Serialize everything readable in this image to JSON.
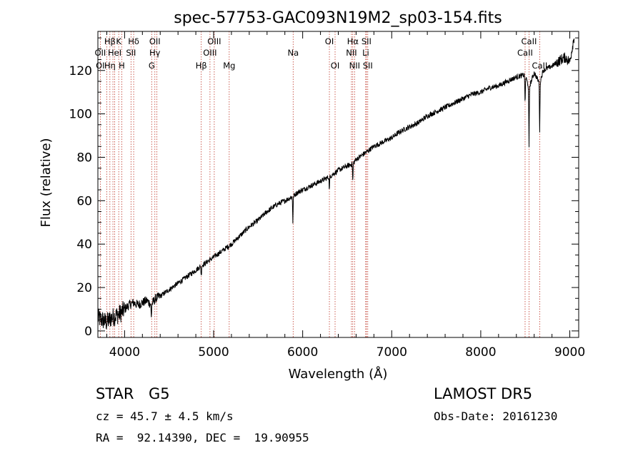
{
  "chart_data": {
    "type": "line",
    "title": "spec-57753-GAC093N19M2_sp03-154.fits",
    "xlabel": "Wavelength (Å)",
    "ylabel": "Flux (relative)",
    "xlim": [
      3700,
      9100
    ],
    "ylim": [
      -3,
      138
    ],
    "xticks": [
      4000,
      5000,
      6000,
      7000,
      8000,
      9000
    ],
    "yticks": [
      0,
      20,
      40,
      60,
      80,
      100,
      120
    ],
    "grid": false,
    "series": [
      {
        "x": [
          3700,
          3750,
          3800,
          3850,
          3900,
          3950,
          4000,
          4050,
          4100,
          4150,
          4200,
          4250,
          4300,
          4350,
          4400,
          4500,
          4600,
          4700,
          4800,
          4860,
          4900,
          5000,
          5100,
          5200,
          5300,
          5400,
          5500,
          5600,
          5700,
          5800,
          5890,
          5950,
          6000,
          6100,
          6200,
          6300,
          6400,
          6500,
          6563,
          6600,
          6700,
          6800,
          6900,
          7000,
          7100,
          7200,
          7300,
          7400,
          7500,
          7600,
          7700,
          7800,
          7900,
          8000,
          8100,
          8200,
          8300,
          8400,
          8498,
          8542,
          8600,
          8662,
          8700,
          8800,
          8900,
          8950,
          9000,
          9050
        ],
        "y": [
          6,
          5,
          4,
          6,
          7,
          8,
          10,
          12,
          13,
          12,
          13,
          14,
          12,
          15,
          16,
          19,
          22,
          25,
          28,
          30,
          31,
          34,
          37,
          40,
          44,
          48,
          51,
          55,
          58,
          60,
          62,
          64,
          65,
          67,
          69,
          71,
          74,
          76,
          77,
          79,
          82,
          85,
          87,
          89,
          92,
          94,
          96,
          99,
          101,
          103,
          105,
          107,
          109,
          110,
          112,
          113,
          115,
          117,
          118,
          112,
          119,
          114,
          120,
          122,
          125,
          126,
          124,
          136
        ]
      }
    ],
    "absorption_dips": [
      {
        "x": 4300,
        "depth": 6
      },
      {
        "x": 4861,
        "depth": 5
      },
      {
        "x": 5890,
        "depth": 12
      },
      {
        "x": 6300,
        "depth": 6
      },
      {
        "x": 6563,
        "depth": 8
      },
      {
        "x": 8498,
        "depth": 14
      },
      {
        "x": 8542,
        "depth": 28
      },
      {
        "x": 8662,
        "depth": 22
      }
    ],
    "spectral_lines": [
      {
        "label": "Hβ",
        "x": 3835,
        "row": 0
      },
      {
        "label": "K",
        "x": 3934,
        "row": 0
      },
      {
        "label": "Hδ",
        "x": 4102,
        "row": 0
      },
      {
        "label": "OII",
        "x": 4340,
        "row": 0
      },
      {
        "label": "OIII",
        "x": 5007,
        "row": 0
      },
      {
        "label": "OI",
        "x": 6300,
        "row": 0
      },
      {
        "label": "Hα",
        "x": 6563,
        "row": 0
      },
      {
        "label": "SII",
        "x": 6716,
        "row": 0
      },
      {
        "label": "CaII",
        "x": 8542,
        "row": 0
      },
      {
        "label": "OII",
        "x": 3727,
        "row": 1
      },
      {
        "label": "HeI",
        "x": 3889,
        "row": 1
      },
      {
        "label": "SII",
        "x": 4072,
        "row": 1
      },
      {
        "label": "Hγ",
        "x": 4340,
        "row": 1
      },
      {
        "label": "OIII",
        "x": 4959,
        "row": 1
      },
      {
        "label": "Na",
        "x": 5893,
        "row": 1
      },
      {
        "label": "NII",
        "x": 6548,
        "row": 1
      },
      {
        "label": "Li",
        "x": 6708,
        "row": 1
      },
      {
        "label": "CaII",
        "x": 8498,
        "row": 1
      },
      {
        "label": "OI",
        "x": 3727,
        "row": 2
      },
      {
        "label": "Hη",
        "x": 3835,
        "row": 2
      },
      {
        "label": "H",
        "x": 3968,
        "row": 2
      },
      {
        "label": "G",
        "x": 4304,
        "row": 2
      },
      {
        "label": "Hβ",
        "x": 4861,
        "row": 2
      },
      {
        "label": "Mg",
        "x": 5175,
        "row": 2
      },
      {
        "label": "OI",
        "x": 6364,
        "row": 2
      },
      {
        "label": "NII",
        "x": 6583,
        "row": 2
      },
      {
        "label": "SII",
        "x": 6731,
        "row": 2
      },
      {
        "label": "CaII",
        "x": 8662,
        "row": 2
      }
    ],
    "marker_lines_x": [
      3727,
      3799,
      3835,
      3869,
      3889,
      3934,
      3968,
      4072,
      4102,
      4304,
      4340,
      4363,
      4861,
      4959,
      5007,
      5175,
      5893,
      6300,
      6364,
      6548,
      6563,
      6583,
      6708,
      6716,
      6731,
      8498,
      8542,
      8662
    ]
  },
  "info": {
    "class": "STAR",
    "subclass": "G5",
    "survey": "LAMOST DR5",
    "cz": "cz = 45.7 ± 4.5 km/s",
    "obs_date": "Obs-Date: 20161230",
    "coords": "RA =  92.14390, DEC =  19.90955"
  }
}
